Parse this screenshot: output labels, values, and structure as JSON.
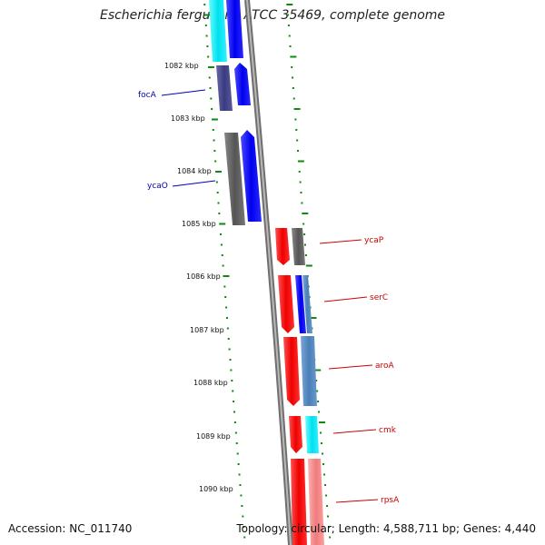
{
  "title": "Escherichia fergusonii ATCC 35469, complete genome",
  "footer": {
    "accession": "Accession: NC_011740",
    "topology": "Topology: circular; Length: 4,588,711 bp; Genes: 4,440"
  },
  "ruler": {
    "ticks": [
      "1082 kbp",
      "1083 kbp",
      "1084 kbp",
      "1085 kbp",
      "1086 kbp",
      "1087 kbp",
      "1088 kbp",
      "1089 kbp",
      "1090 kbp"
    ]
  },
  "genes_left": [
    {
      "name": "focA",
      "color": "#0000bb"
    },
    {
      "name": "ycaO",
      "color": "#0000bb"
    }
  ],
  "genes_right": [
    {
      "name": "ycaP",
      "color": "#cc0000"
    },
    {
      "name": "serC",
      "color": "#cc0000"
    },
    {
      "name": "aroA",
      "color": "#cc0000"
    },
    {
      "name": "cmk",
      "color": "#cc0000"
    },
    {
      "name": "rpsA",
      "color": "#cc0000"
    }
  ],
  "colors": {
    "forward_cds": "#0000ee",
    "reverse_cds": "#ff0000",
    "backbone": "#888888",
    "ruler_dots": "#118811",
    "cyan_feature": "#00e5ee",
    "dark_feature": "#555555"
  }
}
